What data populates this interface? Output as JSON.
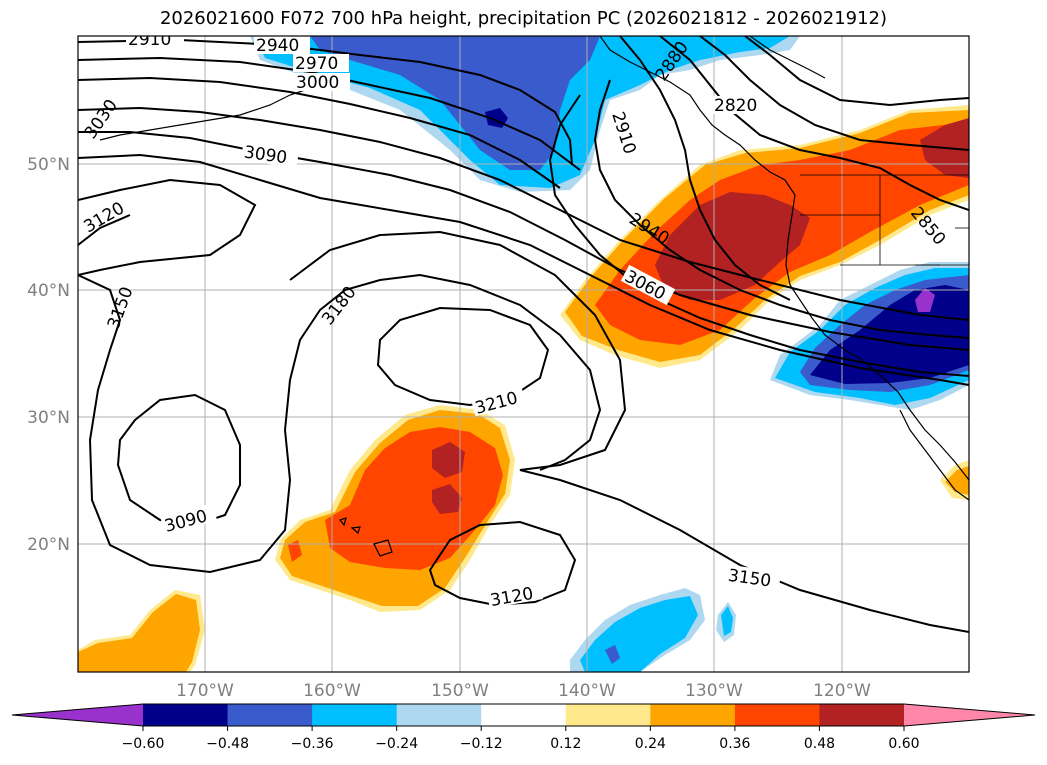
{
  "title": "2026021600 F072 700 hPa height, precipitation PC (2026021812 - 2026021912)",
  "lat_labels": [
    "50°N",
    "40°N",
    "30°N",
    "20°N"
  ],
  "lon_labels": [
    "170°W",
    "160°W",
    "150°W",
    "140°W",
    "130°W",
    "120°W"
  ],
  "contour_labels": [
    "2910",
    "2940",
    "2970",
    "3000",
    "3030",
    "3090",
    "3120",
    "3150",
    "3180",
    "3210",
    "3060",
    "2940",
    "2910",
    "2880",
    "2820",
    "2850",
    "3090",
    "3120",
    "3150"
  ],
  "colorbar": {
    "ticks": [
      "−0.60",
      "−0.48",
      "−0.36",
      "−0.24",
      "−0.12",
      "0.12",
      "0.24",
      "0.36",
      "0.48",
      "0.60"
    ],
    "colors": [
      "#9932cc",
      "#00008b",
      "#3a5bcc",
      "#00bfff",
      "#add8f0",
      "#ffffff",
      "#ffe98c",
      "#ffa500",
      "#ff4500",
      "#b22222",
      "#ff88aa"
    ]
  },
  "colors": {
    "frame": "#000000",
    "grid": "#b0b0b0",
    "label_gray": "#808080"
  }
}
